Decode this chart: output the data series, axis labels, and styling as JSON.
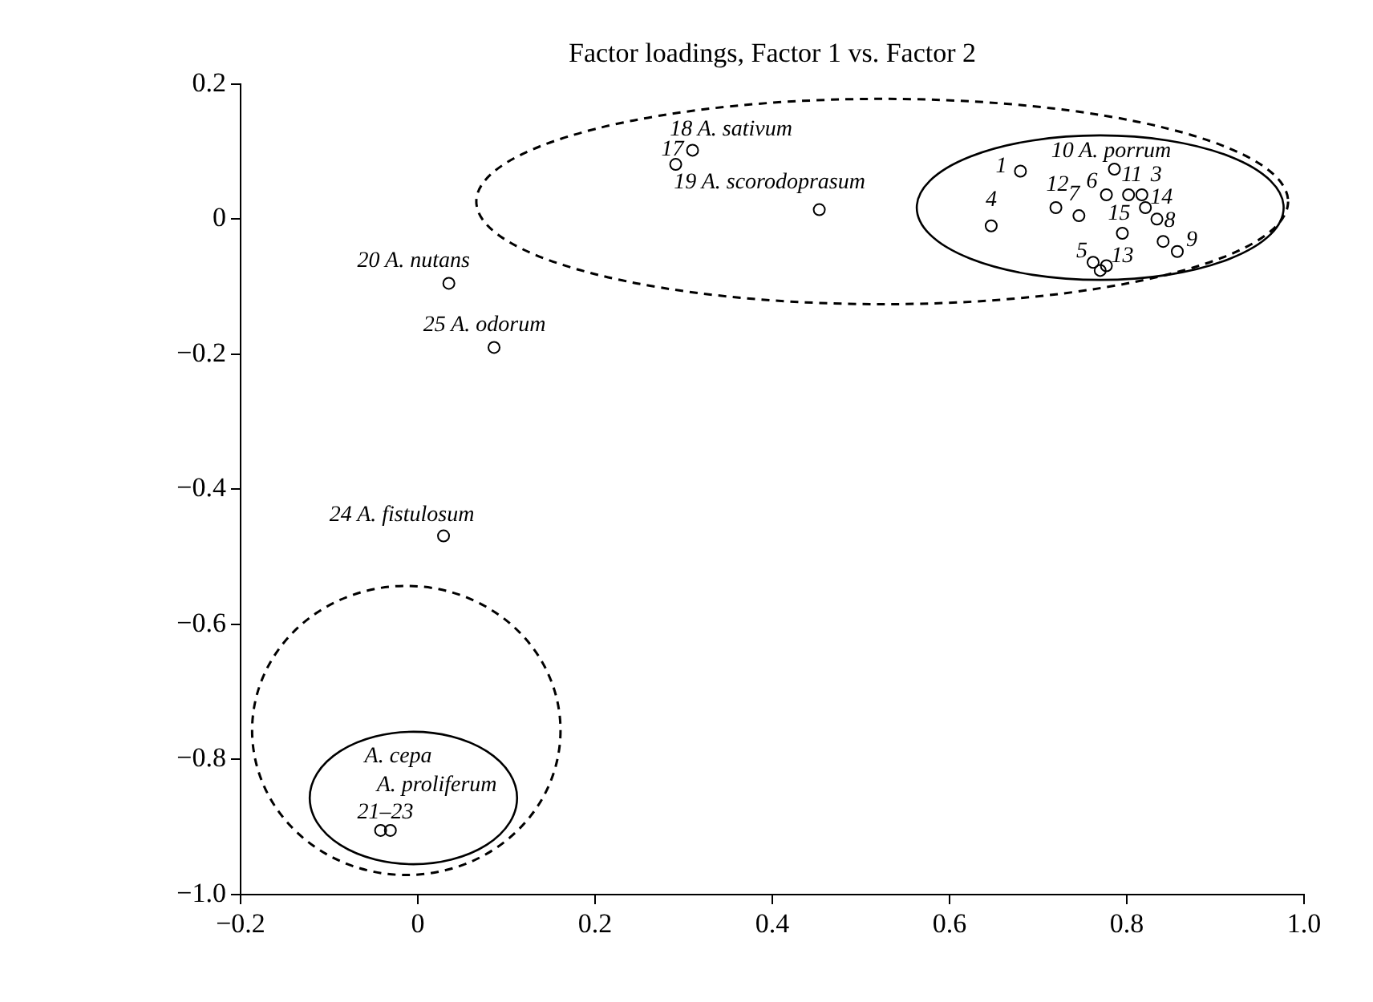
{
  "chart_data": {
    "type": "scatter",
    "title": "Factor loadings, Factor 1 vs. Factor 2",
    "marker": "circle",
    "grid": false,
    "legend": false,
    "series": [
      {
        "color": "#000000",
        "x": [
          0.68,
          0.786,
          0.647,
          0.72,
          0.746,
          0.777,
          0.802,
          0.817,
          0.821,
          0.834,
          0.795,
          0.841,
          0.857,
          0.762,
          0.777,
          0.77,
          0.31,
          0.291,
          0.453,
          0.035,
          0.086,
          0.029,
          -0.042,
          -0.031
        ],
        "values": [
          0.071,
          0.074,
          -0.01,
          0.017,
          0.005,
          0.036,
          0.036,
          0.036,
          0.017,
          0.0,
          -0.021,
          -0.033,
          -0.048,
          -0.064,
          -0.069,
          -0.076,
          0.102,
          0.081,
          0.014,
          -0.095,
          -0.19,
          -0.469,
          -0.905,
          -0.905
        ]
      }
    ],
    "xlim": [
      -0.2,
      1.0
    ],
    "xticks": [
      {
        "value": -0.2,
        "label": "−0.2"
      },
      0,
      0.2,
      0.4,
      0.6,
      0.8,
      {
        "value": 1.0,
        "label": "1.0"
      }
    ],
    "ylim": [
      -1.0,
      0.2
    ],
    "yticks": [
      {
        "value": -1.0,
        "label": "−1.0"
      },
      {
        "value": -0.8,
        "label": "−0.8"
      },
      {
        "value": -0.6,
        "label": "−0.6"
      },
      {
        "value": -0.4,
        "label": "−0.4"
      },
      {
        "value": -0.2,
        "label": "−0.2"
      },
      0,
      0.2
    ],
    "annotations": [
      {
        "text": "18 A. sativum",
        "x": 0.31,
        "y": 0.102
      },
      {
        "text": "17",
        "x": 0.291,
        "y": 0.081
      },
      {
        "text": "19 A. scorodoprasum",
        "x": 0.453,
        "y": 0.014
      },
      {
        "text": "20 A. nutans",
        "x": 0.035,
        "y": -0.095
      },
      {
        "text": "25 A. odorum",
        "x": 0.086,
        "y": -0.19
      },
      {
        "text": "24 A. fistulosum",
        "x": 0.029,
        "y": -0.469
      },
      {
        "text": "A. cepa",
        "x": -0.042,
        "y": -0.905
      },
      {
        "text": "A. proliferum",
        "x": -0.042,
        "y": -0.905
      },
      {
        "text": "21–23",
        "x": -0.042,
        "y": -0.905
      },
      {
        "text": "1",
        "x": 0.68,
        "y": 0.071
      },
      {
        "text": "10 A. porrum",
        "x": 0.786,
        "y": 0.074
      },
      {
        "text": "4",
        "x": 0.647,
        "y": -0.01
      },
      {
        "text": "12",
        "x": 0.72,
        "y": 0.017
      },
      {
        "text": "7",
        "x": 0.746,
        "y": 0.005
      },
      {
        "text": "6",
        "x": 0.777,
        "y": 0.036
      },
      {
        "text": "11",
        "x": 0.802,
        "y": 0.036
      },
      {
        "text": "3",
        "x": 0.817,
        "y": 0.036
      },
      {
        "text": "14",
        "x": 0.821,
        "y": 0.017
      },
      {
        "text": "8",
        "x": 0.834,
        "y": 0.0
      },
      {
        "text": "15",
        "x": 0.795,
        "y": -0.021
      },
      {
        "text": "9",
        "x": 0.857,
        "y": -0.048
      },
      {
        "text": "5",
        "x": 0.762,
        "y": -0.064
      },
      {
        "text": "13",
        "x": 0.777,
        "y": -0.069
      }
    ]
  }
}
